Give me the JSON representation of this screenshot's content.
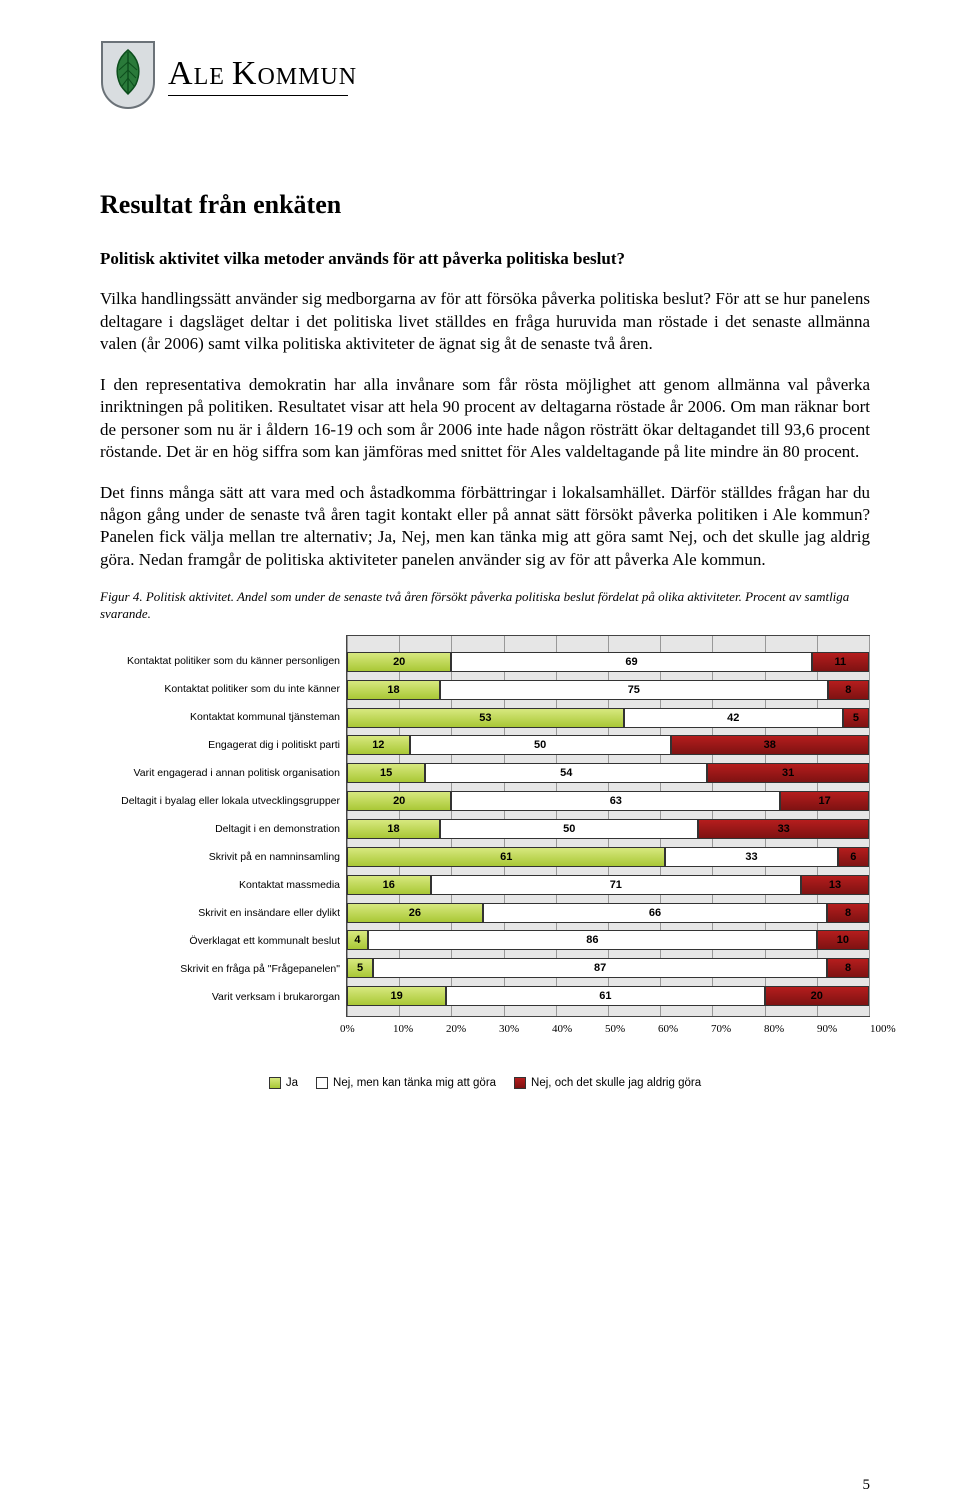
{
  "header": {
    "org_name_html": "ALE KOMMUN",
    "crest_colors": {
      "shield_fill": "#d9dde0",
      "shield_stroke": "#6b7278",
      "leaf_fill": "#2a7a3a",
      "leaf_stroke": "#0c4d1c"
    }
  },
  "title": "Resultat från enkäten",
  "paragraphs": [
    "Politisk aktivitet vilka metoder används för att påverka politiska beslut?",
    "Vilka handlingssätt använder sig medborgarna av för att försöka påverka politiska beslut? För att se hur panelens deltagare i dagsläget deltar i det politiska livet ställdes en fråga huruvida man röstade i det senaste allmänna valen (år 2006) samt vilka politiska aktiviteter de ägnat sig åt de senaste två åren.",
    "I den representativa demokratin har alla invånare som får rösta möjlighet att genom allmänna val påverka inriktningen på politiken. Resultatet visar att hela 90 procent av deltagarna röstade år 2006. Om man räknar bort de personer som nu är i åldern 16-19 och som år 2006 inte hade någon rösträtt ökar deltagandet till 93,6 procent röstande. Det är en hög siffra som kan jämföras med snittet för Ales valdeltagande på lite mindre än 80 procent.",
    "Det finns många sätt att vara med och åstadkomma förbättringar i lokalsamhället. Därför ställdes frågan har du någon gång under de senaste två åren tagit kontakt eller på annat sätt försökt påverka politiken i Ale kommun? Panelen fick välja mellan tre alternativ; Ja, Nej, men kan tänka mig att göra samt Nej, och det skulle jag aldrig göra. Nedan framgår de politiska aktiviteter panelen använder sig av för att påverka Ale kommun."
  ],
  "figure_caption": "Figur 4. Politisk aktivitet. Andel som under de senaste två åren försökt påverka politiska beslut fördelat på olika aktiviteter. Procent av samtliga svarande.",
  "chart": {
    "type": "stacked-horizontal-bar",
    "plot_background": "#e6e6e6",
    "grid_color": "#999999",
    "border_color": "#444444",
    "series": [
      {
        "name": "Ja",
        "color_top": "#d7e87f",
        "color_bottom": "#a9c836"
      },
      {
        "name": "Nej, men kan tänka mig att göra",
        "color": "#ffffff"
      },
      {
        "name": "Nej, och det skulle jag aldrig göra",
        "color_top": "#b51d1d",
        "color_bottom": "#7e1212"
      }
    ],
    "categories": [
      "Kontaktat politiker som du känner personligen",
      "Kontaktat politiker som du inte känner",
      "Kontaktat kommunal tjänsteman",
      "Engagerat dig i politiskt parti",
      "Varit engagerad i annan politisk organisation",
      "Deltagit i byalag eller lokala utvecklingsgrupper",
      "Deltagit i en demonstration",
      "Skrivit på en namninsamling",
      "Kontaktat massmedia",
      "Skrivit en insändare eller dylikt",
      "Överklagat ett kommunalt beslut",
      "Skrivit en fråga på \"Frågepanelen\"",
      "Varit verksam i brukarorgan"
    ],
    "values": [
      [
        20,
        69,
        11
      ],
      [
        18,
        75,
        8
      ],
      [
        53,
        42,
        5
      ],
      [
        12,
        50,
        38
      ],
      [
        15,
        54,
        31
      ],
      [
        20,
        63,
        17
      ],
      [
        18,
        50,
        33
      ],
      [
        61,
        33,
        6
      ],
      [
        16,
        71,
        13
      ],
      [
        26,
        66,
        8
      ],
      [
        4,
        86,
        10
      ],
      [
        5,
        87,
        8
      ],
      [
        19,
        61,
        20
      ]
    ],
    "x_ticks": [
      "0%",
      "10%",
      "20%",
      "30%",
      "40%",
      "50%",
      "60%",
      "70%",
      "80%",
      "90%",
      "100%"
    ],
    "x_lim": [
      0,
      100
    ]
  },
  "legend": {
    "items": [
      "Ja",
      "Nej, men kan tänka mig att göra",
      "Nej, och det skulle jag aldrig göra"
    ]
  },
  "page_number": "5"
}
